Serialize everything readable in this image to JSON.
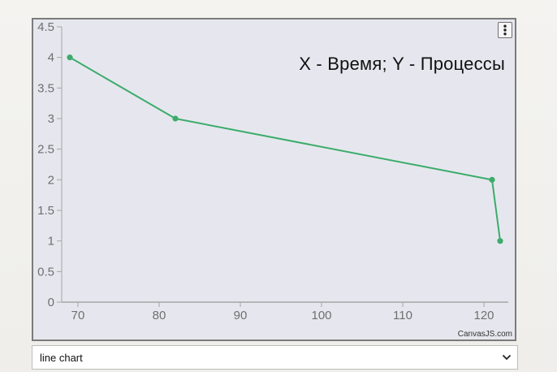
{
  "chart_data": {
    "type": "line",
    "title": "X - Время; Y - Процессы",
    "xlim": [
      68,
      123
    ],
    "ylim": [
      0,
      4.5
    ],
    "x_ticks": [
      70,
      80,
      90,
      100,
      110,
      120
    ],
    "y_ticks": [
      0,
      0.5,
      1,
      1.5,
      2,
      2.5,
      3,
      3.5,
      4,
      4.5
    ],
    "grid": false,
    "series": [
      {
        "color": "#3cac6b",
        "points": [
          {
            "x": 69,
            "y": 4
          },
          {
            "x": 82,
            "y": 3
          },
          {
            "x": 121,
            "y": 2
          },
          {
            "x": 122,
            "y": 1
          }
        ]
      }
    ]
  },
  "ui": {
    "credit": "CanvasJS.com",
    "menu_icon": "three-dots-vertical-icon",
    "chart_type_select": {
      "selected": "line chart"
    },
    "colors": {
      "plot_background": "#e6e7ee",
      "axis": "#a6a6a6",
      "tick_label": "#6f6f6f",
      "line": "#3cac6b"
    }
  }
}
